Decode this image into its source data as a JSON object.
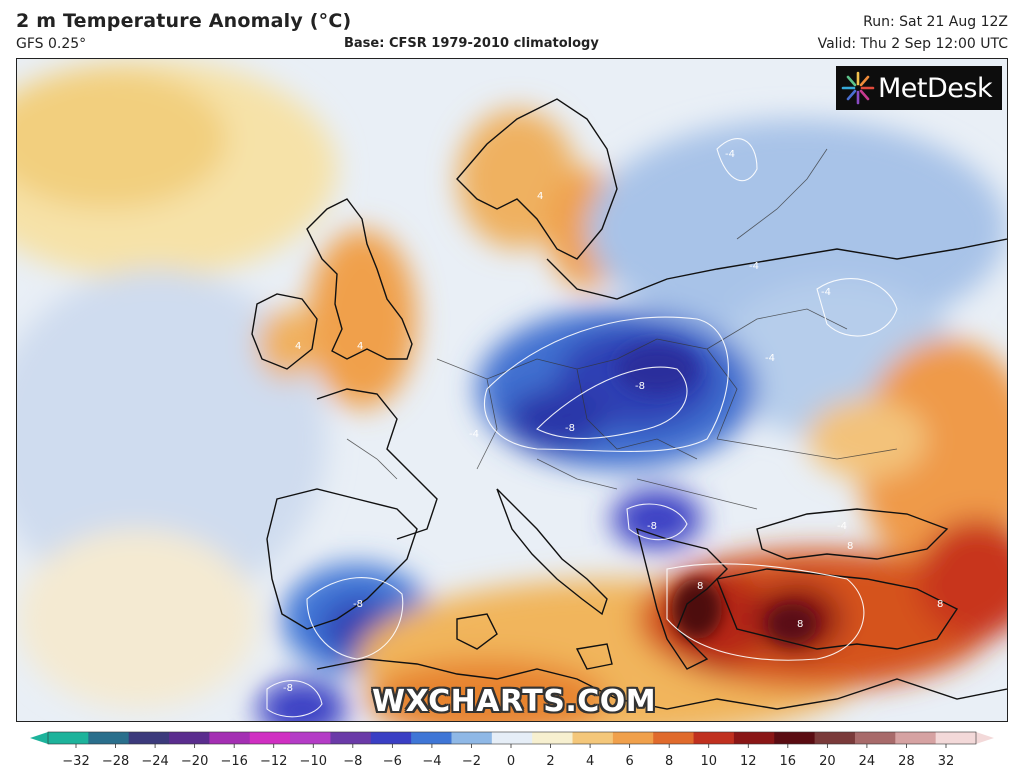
{
  "header": {
    "title": "2 m Temperature Anomaly (°C)",
    "model": "GFS 0.25°",
    "base": "Base: CFSR 1979-2010 climatology",
    "run": "Run: Sat 21 Aug 12Z",
    "valid": "Valid: Thu 2 Sep 12:00 UTC"
  },
  "logo": {
    "text": "MetDesk",
    "icon": "sunburst-logo-icon"
  },
  "watermark": "WXCHARTS.COM",
  "colorbar": {
    "ticks": [
      "−32",
      "−28",
      "−24",
      "−20",
      "−16",
      "−12",
      "−10",
      "−8",
      "−6",
      "−4",
      "−2",
      "0",
      "2",
      "4",
      "6",
      "8",
      "10",
      "12",
      "16",
      "20",
      "24",
      "28",
      "32"
    ],
    "colors": [
      "#1db39b",
      "#2a6f8c",
      "#3c3a7c",
      "#5a2d8e",
      "#a42fb3",
      "#d02fc2",
      "#b43cc6",
      "#6a3aa8",
      "#3a3fc4",
      "#3f76d6",
      "#8fb8e6",
      "#e6eef7",
      "#f7f0d0",
      "#f4c77a",
      "#f0a04b",
      "#e06a2c",
      "#c0301f",
      "#8a1616",
      "#5a0c12",
      "#7a3a3a",
      "#a86a6a",
      "#d6a2a2",
      "#f3d9d9"
    ]
  },
  "map": {
    "contour_labels": [
      "-4",
      "-4",
      "-4",
      "-4",
      "-4",
      "-4",
      "-8",
      "-8",
      "-8",
      "-8",
      "-8",
      "4",
      "4",
      "4",
      "8",
      "8",
      "8",
      "8"
    ]
  }
}
